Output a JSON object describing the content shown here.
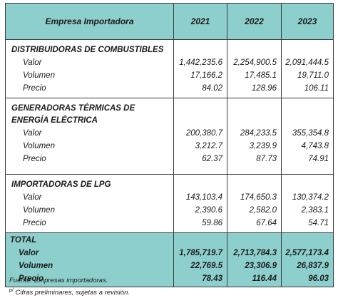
{
  "header": {
    "col0": "Empresa Importadora",
    "years": [
      "2021",
      "2022",
      "2023"
    ]
  },
  "sections": [
    {
      "title": "DISTRIBUIDORAS DE COMBUSTIBLES",
      "rows": [
        {
          "label": "Valor",
          "v": [
            "1,442,235.6",
            "2,254,900.5",
            "2,091,444.5"
          ]
        },
        {
          "label": "Volumen",
          "v": [
            "17,166.2",
            "17,485.1",
            "19,711.0"
          ]
        },
        {
          "label": "Precio",
          "v": [
            "84.02",
            "128.96",
            "106.11"
          ]
        }
      ]
    },
    {
      "title": "GENERADORAS TÉRMICAS DE ENERGÍA ELÉCTRICA",
      "rows": [
        {
          "label": "Valor",
          "v": [
            "200,380.7",
            "284,233.5",
            "355,354.8"
          ]
        },
        {
          "label": "Volumen",
          "v": [
            "3,212.7",
            "3,239.9",
            "4,743.8"
          ]
        },
        {
          "label": "Precio",
          "v": [
            "62.37",
            "87.73",
            "74.91"
          ]
        }
      ]
    },
    {
      "title": "IMPORTADORAS DE LPG",
      "rows": [
        {
          "label": "Valor",
          "v": [
            "143,103.4",
            "174,650.3",
            "130,374.2"
          ]
        },
        {
          "label": "Volumen",
          "v": [
            "2,390.6",
            "2,582.0",
            "2,383.1"
          ]
        },
        {
          "label": "Precio",
          "v": [
            "59.86",
            "67.64",
            "54.71"
          ]
        }
      ]
    }
  ],
  "total": {
    "title": "TOTAL",
    "rows": [
      {
        "label": "Valor",
        "v": [
          "1,785,719.7",
          "2,713,784.3",
          "2,577,173.4"
        ]
      },
      {
        "label": "Volumen",
        "v": [
          "22,769.5",
          "23,306.9",
          "26,837.9"
        ]
      },
      {
        "label": "Precio",
        "v": [
          "78.43",
          "116.44",
          "96.03"
        ]
      }
    ]
  },
  "notes": {
    "source": "Fuente: Empresas importadoras.",
    "marker": "p/",
    "preliminary": "Cifras preliminares, sujetas a revisión."
  },
  "colors": {
    "header_bg": "#8dcfcc",
    "total_bg": "#8dcfcc",
    "border": "#3b3b3b"
  }
}
